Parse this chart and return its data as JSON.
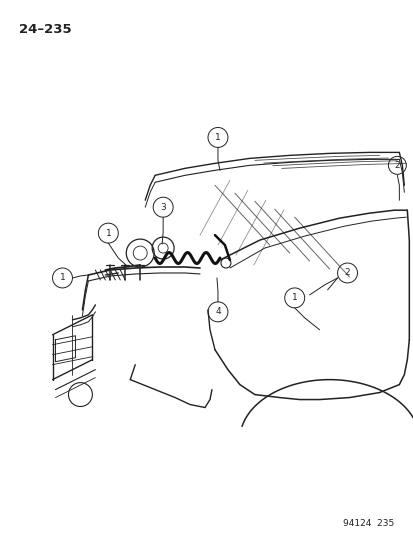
{
  "page_number": "24–235",
  "footer": "94124  235",
  "background_color": "#ffffff",
  "line_color": "#222222",
  "figure_width": 4.14,
  "figure_height": 5.33,
  "dpi": 100,
  "callout_circle_r": 0.018
}
